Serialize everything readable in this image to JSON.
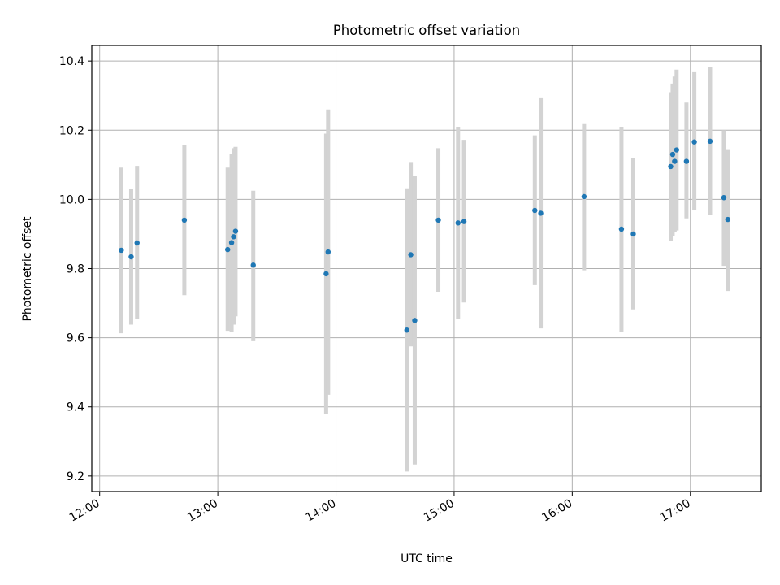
{
  "chart_data": {
    "type": "scatter",
    "title": "Photometric offset variation",
    "xlabel": "UTC time",
    "ylabel": "Photometric offset",
    "xlim": [
      "11:56",
      "17:36"
    ],
    "ylim": [
      9.155,
      10.445
    ],
    "grid": true,
    "x_ticks": [
      "12:00",
      "13:00",
      "14:00",
      "15:00",
      "16:00",
      "17:00"
    ],
    "y_ticks": [
      "9.2",
      "9.4",
      "9.6",
      "9.8",
      "10.0",
      "10.2",
      "10.4"
    ],
    "colors": {
      "point": "#1f77b4",
      "errorbar": "#d3d3d3",
      "grid": "#b0b0b0"
    },
    "series": [
      {
        "points": [
          {
            "x": "12:11",
            "y": 9.853,
            "ylo": 9.613,
            "yhi": 10.092
          },
          {
            "x": "12:16",
            "y": 9.834,
            "ylo": 9.638,
            "yhi": 10.03
          },
          {
            "x": "12:19",
            "y": 9.874,
            "ylo": 9.653,
            "yhi": 10.097
          },
          {
            "x": "12:43",
            "y": 9.94,
            "ylo": 9.723,
            "yhi": 10.157
          },
          {
            "x": "13:05",
            "y": 9.855,
            "ylo": 9.62,
            "yhi": 10.092
          },
          {
            "x": "13:07",
            "y": 9.875,
            "ylo": 9.618,
            "yhi": 10.13
          },
          {
            "x": "13:08",
            "y": 9.892,
            "ylo": 9.638,
            "yhi": 10.148
          },
          {
            "x": "13:09",
            "y": 9.908,
            "ylo": 9.662,
            "yhi": 10.152
          },
          {
            "x": "13:18",
            "y": 9.81,
            "ylo": 9.59,
            "yhi": 10.025
          },
          {
            "x": "13:55",
            "y": 9.785,
            "ylo": 9.38,
            "yhi": 10.19
          },
          {
            "x": "13:56",
            "y": 9.848,
            "ylo": 9.435,
            "yhi": 10.26
          },
          {
            "x": "14:36",
            "y": 9.622,
            "ylo": 9.213,
            "yhi": 10.032
          },
          {
            "x": "14:38",
            "y": 9.84,
            "ylo": 9.575,
            "yhi": 10.108
          },
          {
            "x": "14:40",
            "y": 9.65,
            "ylo": 9.233,
            "yhi": 10.068
          },
          {
            "x": "14:52",
            "y": 9.94,
            "ylo": 9.733,
            "yhi": 10.148
          },
          {
            "x": "15:02",
            "y": 9.932,
            "ylo": 9.655,
            "yhi": 10.21
          },
          {
            "x": "15:05",
            "y": 9.936,
            "ylo": 9.702,
            "yhi": 10.172
          },
          {
            "x": "15:41",
            "y": 9.968,
            "ylo": 9.752,
            "yhi": 10.185
          },
          {
            "x": "15:44",
            "y": 9.96,
            "ylo": 9.627,
            "yhi": 10.295
          },
          {
            "x": "16:06",
            "y": 10.008,
            "ylo": 9.795,
            "yhi": 10.22
          },
          {
            "x": "16:25",
            "y": 9.914,
            "ylo": 9.617,
            "yhi": 10.21
          },
          {
            "x": "16:31",
            "y": 9.9,
            "ylo": 9.682,
            "yhi": 10.12
          },
          {
            "x": "16:50",
            "y": 10.095,
            "ylo": 9.88,
            "yhi": 10.31
          },
          {
            "x": "16:51",
            "y": 10.13,
            "ylo": 9.895,
            "yhi": 10.335
          },
          {
            "x": "16:52",
            "y": 10.11,
            "ylo": 9.905,
            "yhi": 10.355
          },
          {
            "x": "16:53",
            "y": 10.143,
            "ylo": 9.91,
            "yhi": 10.375
          },
          {
            "x": "16:58",
            "y": 10.11,
            "ylo": 9.945,
            "yhi": 10.28
          },
          {
            "x": "17:02",
            "y": 10.166,
            "ylo": 9.968,
            "yhi": 10.37
          },
          {
            "x": "17:10",
            "y": 10.168,
            "ylo": 9.955,
            "yhi": 10.382
          },
          {
            "x": "17:17",
            "y": 10.005,
            "ylo": 9.808,
            "yhi": 10.2
          },
          {
            "x": "17:19",
            "y": 9.942,
            "ylo": 9.735,
            "yhi": 10.145
          }
        ]
      }
    ]
  }
}
